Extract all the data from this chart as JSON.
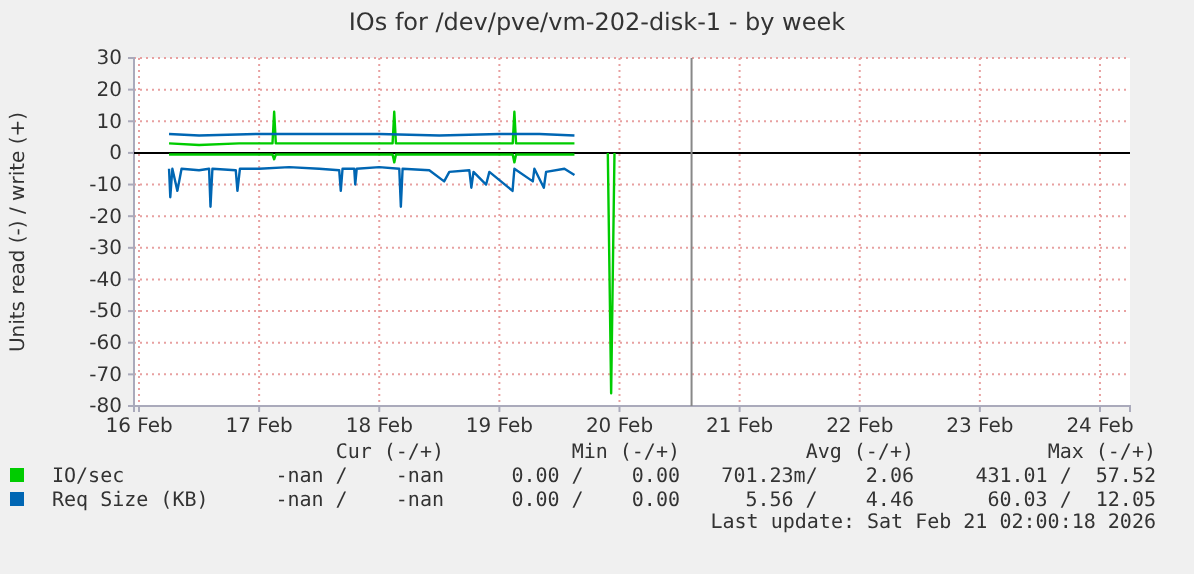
{
  "chart_data": {
    "type": "line",
    "title": "IOs for /dev/pve/vm-202-disk-1 - by week",
    "ylabel": "Units read (-) / write (+)",
    "xlim": [
      "2026-02-15T23:00",
      "2026-02-24T06:00"
    ],
    "xticks": [
      {
        "value": "2026-02-16",
        "label": "16 Feb"
      },
      {
        "value": "2026-02-17",
        "label": "17 Feb"
      },
      {
        "value": "2026-02-18",
        "label": "18 Feb"
      },
      {
        "value": "2026-02-19",
        "label": "19 Feb"
      },
      {
        "value": "2026-02-20",
        "label": "20 Feb"
      },
      {
        "value": "2026-02-21",
        "label": "21 Feb"
      },
      {
        "value": "2026-02-22",
        "label": "22 Feb"
      },
      {
        "value": "2026-02-23",
        "label": "23 Feb"
      },
      {
        "value": "2026-02-24",
        "label": "24 Feb"
      }
    ],
    "ylim": [
      -80,
      30
    ],
    "yticks": [
      -80,
      -70,
      -60,
      -50,
      -40,
      -30,
      -20,
      -10,
      0,
      10,
      20,
      30
    ],
    "grid": true,
    "legend": "bottom",
    "line_style": "solid",
    "ref_lines": [
      {
        "axis": "y",
        "value": 0,
        "color": "#000000"
      },
      {
        "axis": "x",
        "value": "2026-02-20T14:24",
        "color": "#888888"
      }
    ],
    "series": [
      {
        "name": "IO/sec",
        "color": "#00cc00",
        "x": [
          "2026-02-16T06:00",
          "2026-02-16T12:00",
          "2026-02-16T20:00",
          "2026-02-17T02:40",
          "2026-02-17T03:00",
          "2026-02-17T03:20",
          "2026-02-17T12:00",
          "2026-02-17T20:00",
          "2026-02-18T02:40",
          "2026-02-18T03:00",
          "2026-02-18T03:20",
          "2026-02-18T12:00",
          "2026-02-18T20:00",
          "2026-02-19T02:40",
          "2026-02-19T03:00",
          "2026-02-19T03:20",
          "2026-02-19T10:00",
          "2026-02-19T15:00"
        ],
        "values": [
          3,
          2.5,
          3,
          3,
          13,
          3,
          3,
          3,
          3,
          13,
          3,
          3,
          3,
          3,
          13,
          3,
          3,
          3
        ]
      },
      {
        "color": "#00cc00",
        "x": [
          "2026-02-16T06:00",
          "2026-02-16T12:00",
          "2026-02-17T02:40",
          "2026-02-17T03:00",
          "2026-02-17T03:20",
          "2026-02-17T12:00",
          "2026-02-18T02:40",
          "2026-02-18T03:00",
          "2026-02-18T03:20",
          "2026-02-18T12:00",
          "2026-02-19T02:40",
          "2026-02-19T03:00",
          "2026-02-19T03:20",
          "2026-02-19T10:00",
          "2026-02-19T15:00",
          "2026-02-19T18:00",
          "2026-02-19T21:40",
          "2026-02-19T22:20",
          "2026-02-19T23:00"
        ],
        "values": [
          -0.5,
          -0.5,
          -0.5,
          -2,
          -0.5,
          -0.5,
          -0.5,
          -3,
          -0.5,
          -0.5,
          -0.5,
          -3,
          -0.5,
          -0.5,
          -0.5,
          null,
          0,
          -76,
          0
        ]
      },
      {
        "name": "Req Size (KB)",
        "color": "#0066b3",
        "x": [
          "2026-02-16T06:00",
          "2026-02-16T12:00",
          "2026-02-17T00:00",
          "2026-02-17T12:00",
          "2026-02-18T00:00",
          "2026-02-18T12:00",
          "2026-02-19T00:00",
          "2026-02-19T08:00",
          "2026-02-19T15:00"
        ],
        "values": [
          6,
          5.5,
          6,
          6,
          6,
          5.5,
          6,
          6,
          5.5
        ]
      },
      {
        "color": "#0066b3",
        "x": [
          "2026-02-16T06:00",
          "2026-02-16T06:15",
          "2026-02-16T06:40",
          "2026-02-16T07:40",
          "2026-02-16T08:30",
          "2026-02-16T12:00",
          "2026-02-16T14:00",
          "2026-02-16T14:17",
          "2026-02-16T14:40",
          "2026-02-16T19:20",
          "2026-02-16T19:40",
          "2026-02-16T20:10",
          "2026-02-17T00:00",
          "2026-02-17T06:00",
          "2026-02-17T12:00",
          "2026-02-17T16:00",
          "2026-02-17T16:19",
          "2026-02-17T16:40",
          "2026-02-17T19:00",
          "2026-02-17T19:12",
          "2026-02-17T19:30",
          "2026-02-18T00:00",
          "2026-02-18T04:00",
          "2026-02-18T04:19",
          "2026-02-18T04:40",
          "2026-02-18T10:00",
          "2026-02-18T12:58",
          "2026-02-18T14:00",
          "2026-02-18T18:00",
          "2026-02-18T18:24",
          "2026-02-18T18:50",
          "2026-02-18T21:21",
          "2026-02-18T22:00",
          "2026-02-19T02:38",
          "2026-02-19T03:00",
          "2026-02-19T06:41",
          "2026-02-19T07:00",
          "2026-02-19T08:53",
          "2026-02-19T09:20",
          "2026-02-19T13:00",
          "2026-02-19T15:00"
        ],
        "values": [
          -5,
          -14,
          -5,
          -12,
          -5,
          -5.5,
          -5,
          -17,
          -5,
          -5.5,
          -12,
          -5,
          -5,
          -4.5,
          -5,
          -5.5,
          -12,
          -5,
          -5,
          -10,
          -5,
          -4.5,
          -5,
          -17,
          -5,
          -5.5,
          -9,
          -6,
          -5.5,
          -11,
          -6,
          -10,
          -6,
          -12,
          -5,
          -9,
          -5,
          -11,
          -6,
          -5,
          -7
        ]
      }
    ],
    "annotations": [
      "Cur (-/+)",
      "Min (-/+)",
      "Avg (-/+)",
      "Max (-/+)",
      "-nan /    -nan",
      "0.00 /    0.00",
      "701.23m/    2.06",
      "431.01 /  57.52",
      "-nan /    -nan",
      "0.00 /    0.00",
      "5.56 /    4.46",
      "60.03 /  12.05",
      "Last update: Sat Feb 21 02:00:18 2026"
    ]
  }
}
